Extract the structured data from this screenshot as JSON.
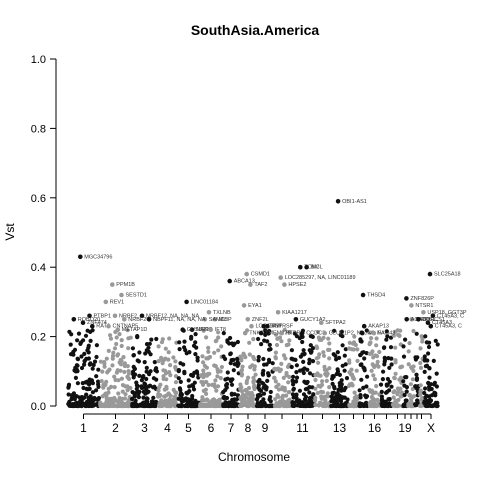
{
  "chart_data": {
    "type": "scatter",
    "title": "SouthAsia.America",
    "xlabel": "Chromosome",
    "ylabel": "Vst",
    "ylim": [
      0,
      1
    ],
    "yticks": [
      "0.0",
      "0.2",
      "0.4",
      "0.6",
      "0.8",
      "1.0"
    ],
    "chromosomes": [
      "1",
      "2",
      "3",
      "4",
      "5",
      "6",
      "7",
      "8",
      "9",
      "10",
      "11",
      "12",
      "13",
      "14",
      "15",
      "16",
      "17",
      "18",
      "19",
      "20",
      "21",
      "22",
      "X"
    ],
    "xtick_labels": [
      "1",
      "2",
      "3",
      "4",
      "5",
      "6",
      "7",
      "8",
      "9",
      "11",
      "13",
      "16",
      "19",
      "X"
    ],
    "colors": {
      "odd": "#111111",
      "even": "#999999",
      "axis": "#000000"
    },
    "highlighted_points": [
      {
        "label": "OBI1-AS1",
        "chrom": "13",
        "value": 0.59
      },
      {
        "label": "MGC34796",
        "chrom": "1",
        "value": 0.43
      },
      {
        "label": "SLC25A18",
        "chrom": "X",
        "value": 0.38
      },
      {
        "label": "TCM2",
        "chrom": "11",
        "value": 0.4
      },
      {
        "label": "BICL",
        "chrom": "11",
        "value": 0.4
      },
      {
        "label": "CSMD1",
        "chrom": "8",
        "value": 0.38
      },
      {
        "label": "LOC285297, NA, LINC01189",
        "chrom": "10",
        "value": 0.37
      },
      {
        "label": "ABCA13",
        "chrom": "7",
        "value": 0.36
      },
      {
        "label": "TAF2",
        "chrom": "8",
        "value": 0.35
      },
      {
        "label": "PPM1B",
        "chrom": "2",
        "value": 0.35
      },
      {
        "label": "HPSE2",
        "chrom": "10",
        "value": 0.35
      },
      {
        "label": "SESTD1",
        "chrom": "2",
        "value": 0.32
      },
      {
        "label": "THSD4",
        "chrom": "15",
        "value": 0.32
      },
      {
        "label": "ZNF826P",
        "chrom": "19",
        "value": 0.31
      },
      {
        "label": "REV1",
        "chrom": "2",
        "value": 0.3
      },
      {
        "label": "LINC01184",
        "chrom": "5",
        "value": 0.3
      },
      {
        "label": "NTSR1",
        "chrom": "20",
        "value": 0.29
      },
      {
        "label": "EYA1",
        "chrom": "8",
        "value": 0.29
      },
      {
        "label": "TXLNB",
        "chrom": "6",
        "value": 0.27
      },
      {
        "label": "USP18, GGT3P",
        "chrom": "22",
        "value": 0.27
      },
      {
        "label": "KIAA1217",
        "chrom": "10",
        "value": 0.27
      },
      {
        "label": "PTBP1",
        "chrom": "1",
        "value": 0.26
      },
      {
        "label": "NRBF2",
        "chrom": "2",
        "value": 0.26
      },
      {
        "label": "NRBF12, NA, NA, NA",
        "chrom": "3",
        "value": 0.26
      },
      {
        "label": "CT45A3, C",
        "chrom": "X",
        "value": 0.26
      },
      {
        "label": "SIRPB1",
        "chrom": "20",
        "value": 0.25
      },
      {
        "label": "MLIP",
        "chrom": "6",
        "value": 0.25
      },
      {
        "label": "SAMD5",
        "chrom": "6",
        "value": 0.25
      },
      {
        "label": "GUCY1A2",
        "chrom": "11",
        "value": 0.25
      },
      {
        "label": "ROBO20",
        "chrom": "1",
        "value": 0.25
      },
      {
        "label": "NRBF20",
        "chrom": "2",
        "value": 0.25
      },
      {
        "label": "NBPF11, NA, NA, NA",
        "chrom": "3",
        "value": 0.25
      },
      {
        "label": "ZNF2L",
        "chrom": "8",
        "value": 0.25
      },
      {
        "label": "ACAD9",
        "chrom": "19",
        "value": 0.25
      },
      {
        "label": "SORCS1",
        "chrom": "21",
        "value": 0.25
      },
      {
        "label": "SFTPA2",
        "chrom": "12",
        "value": 0.24
      },
      {
        "label": "ZNF474",
        "chrom": "1",
        "value": 0.24
      },
      {
        "label": "CT45A3",
        "chrom": "X",
        "value": 0.24
      },
      {
        "label": "AKAP13",
        "chrom": "15",
        "value": 0.23
      },
      {
        "label": "CT45A3, C",
        "chrom": "X",
        "value": 0.23
      },
      {
        "label": "RATJ",
        "chrom": "1",
        "value": 0.23
      },
      {
        "label": "CNTNAP5",
        "chrom": "2",
        "value": 0.23
      },
      {
        "label": "LOC15477",
        "chrom": "8",
        "value": 0.23
      },
      {
        "label": "C9orf",
        "chrom": "9",
        "value": 0.23
      },
      {
        "label": "TNFRSF",
        "chrom": "9",
        "value": 0.23
      },
      {
        "label": "NAIP",
        "chrom": "5",
        "value": 0.22
      },
      {
        "label": "GUSBP17",
        "chrom": "5",
        "value": 0.22
      },
      {
        "label": "METAP1D",
        "chrom": "2",
        "value": 0.22
      },
      {
        "label": "IFT8",
        "chrom": "6",
        "value": 0.22
      },
      {
        "label": "TNKS",
        "chrom": "8",
        "value": 0.21
      },
      {
        "label": "TMEM87B",
        "chrom": "9",
        "value": 0.21
      },
      {
        "label": "PTPRD",
        "chrom": "10",
        "value": 0.21
      },
      {
        "label": "CCDC3",
        "chrom": "11",
        "value": 0.21
      },
      {
        "label": "GLUD1P2, NA, NA",
        "chrom": "12",
        "value": 0.21
      },
      {
        "label": "NA, NA",
        "chrom": "15",
        "value": 0.21
      },
      {
        "label": "FAM43",
        "chrom": "16",
        "value": 0.21
      }
    ]
  }
}
